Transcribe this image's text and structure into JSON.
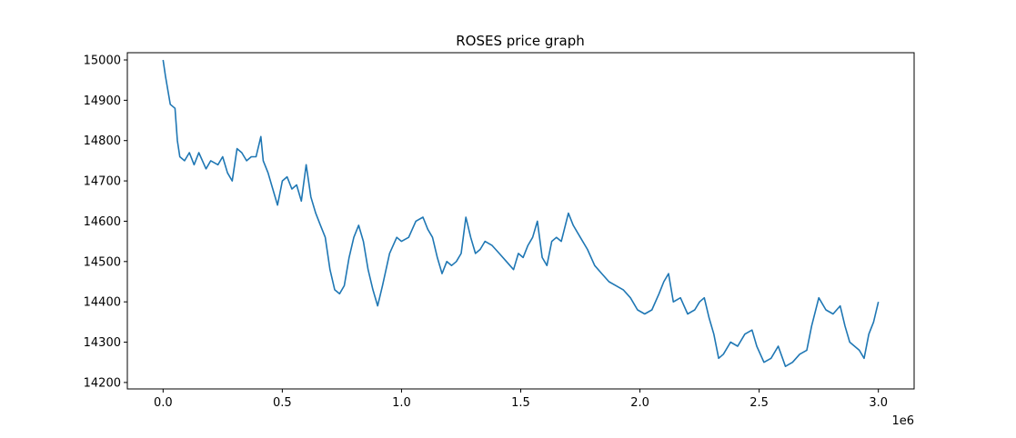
{
  "chart_data": {
    "type": "line",
    "title": "ROSES price graph",
    "xlabel": "",
    "ylabel": "",
    "x_offset_label": "1e6",
    "xlim": [
      -0.15,
      3.15
    ],
    "ylim": [
      14184,
      15018
    ],
    "xticks": [
      0.0,
      0.5,
      1.0,
      1.5,
      2.0,
      2.5,
      3.0
    ],
    "xtick_labels": [
      "0.0",
      "0.5",
      "1.0",
      "1.5",
      "2.0",
      "2.5",
      "3.0"
    ],
    "yticks": [
      14200,
      14300,
      14400,
      14500,
      14600,
      14700,
      14800,
      14900,
      15000
    ],
    "ytick_labels": [
      "14200",
      "14300",
      "14400",
      "14500",
      "14600",
      "14700",
      "14800",
      "14900",
      "15000"
    ],
    "grid": false,
    "series": [
      {
        "color": "#1f77b4",
        "x": [
          0.0,
          0.01,
          0.03,
          0.05,
          0.06,
          0.07,
          0.09,
          0.11,
          0.13,
          0.15,
          0.18,
          0.2,
          0.23,
          0.25,
          0.27,
          0.29,
          0.31,
          0.33,
          0.35,
          0.37,
          0.39,
          0.41,
          0.42,
          0.44,
          0.46,
          0.48,
          0.49,
          0.5,
          0.52,
          0.54,
          0.56,
          0.58,
          0.6,
          0.62,
          0.64,
          0.66,
          0.68,
          0.7,
          0.72,
          0.74,
          0.76,
          0.78,
          0.8,
          0.82,
          0.84,
          0.86,
          0.88,
          0.9,
          0.92,
          0.95,
          0.98,
          1.0,
          1.03,
          1.06,
          1.09,
          1.11,
          1.13,
          1.15,
          1.17,
          1.19,
          1.21,
          1.23,
          1.25,
          1.27,
          1.29,
          1.31,
          1.33,
          1.35,
          1.38,
          1.41,
          1.44,
          1.47,
          1.49,
          1.51,
          1.53,
          1.55,
          1.57,
          1.59,
          1.61,
          1.63,
          1.65,
          1.67,
          1.7,
          1.72,
          1.75,
          1.78,
          1.81,
          1.84,
          1.87,
          1.9,
          1.93,
          1.96,
          1.99,
          2.02,
          2.05,
          2.08,
          2.1,
          2.12,
          2.14,
          2.17,
          2.2,
          2.23,
          2.25,
          2.27,
          2.29,
          2.31,
          2.33,
          2.35,
          2.38,
          2.41,
          2.44,
          2.47,
          2.49,
          2.52,
          2.55,
          2.58,
          2.61,
          2.64,
          2.67,
          2.7,
          2.72,
          2.75,
          2.78,
          2.81,
          2.84,
          2.86,
          2.88,
          2.9,
          2.92,
          2.94,
          2.96,
          2.98,
          3.0
        ],
        "y": [
          15000,
          14960,
          14890,
          14880,
          14800,
          14760,
          14750,
          14770,
          14740,
          14770,
          14730,
          14750,
          14740,
          14760,
          14720,
          14700,
          14780,
          14770,
          14750,
          14760,
          14760,
          14810,
          14750,
          14720,
          14680,
          14640,
          14670,
          14700,
          14710,
          14680,
          14690,
          14650,
          14740,
          14660,
          14620,
          14590,
          14560,
          14480,
          14430,
          14420,
          14440,
          14510,
          14560,
          14590,
          14550,
          14480,
          14430,
          14390,
          14440,
          14520,
          14560,
          14550,
          14560,
          14600,
          14610,
          14580,
          14560,
          14510,
          14470,
          14500,
          14490,
          14500,
          14520,
          14610,
          14560,
          14520,
          14530,
          14550,
          14540,
          14520,
          14500,
          14480,
          14520,
          14510,
          14540,
          14560,
          14600,
          14510,
          14490,
          14550,
          14560,
          14550,
          14620,
          14590,
          14560,
          14530,
          14490,
          14470,
          14450,
          14440,
          14430,
          14410,
          14380,
          14370,
          14380,
          14420,
          14450,
          14470,
          14400,
          14410,
          14370,
          14380,
          14400,
          14410,
          14360,
          14320,
          14260,
          14270,
          14300,
          14290,
          14320,
          14330,
          14290,
          14250,
          14260,
          14290,
          14240,
          14250,
          14270,
          14280,
          14340,
          14410,
          14380,
          14370,
          14390,
          14340,
          14300,
          14290,
          14280,
          14260,
          14320,
          14350,
          14400
        ]
      }
    ]
  }
}
